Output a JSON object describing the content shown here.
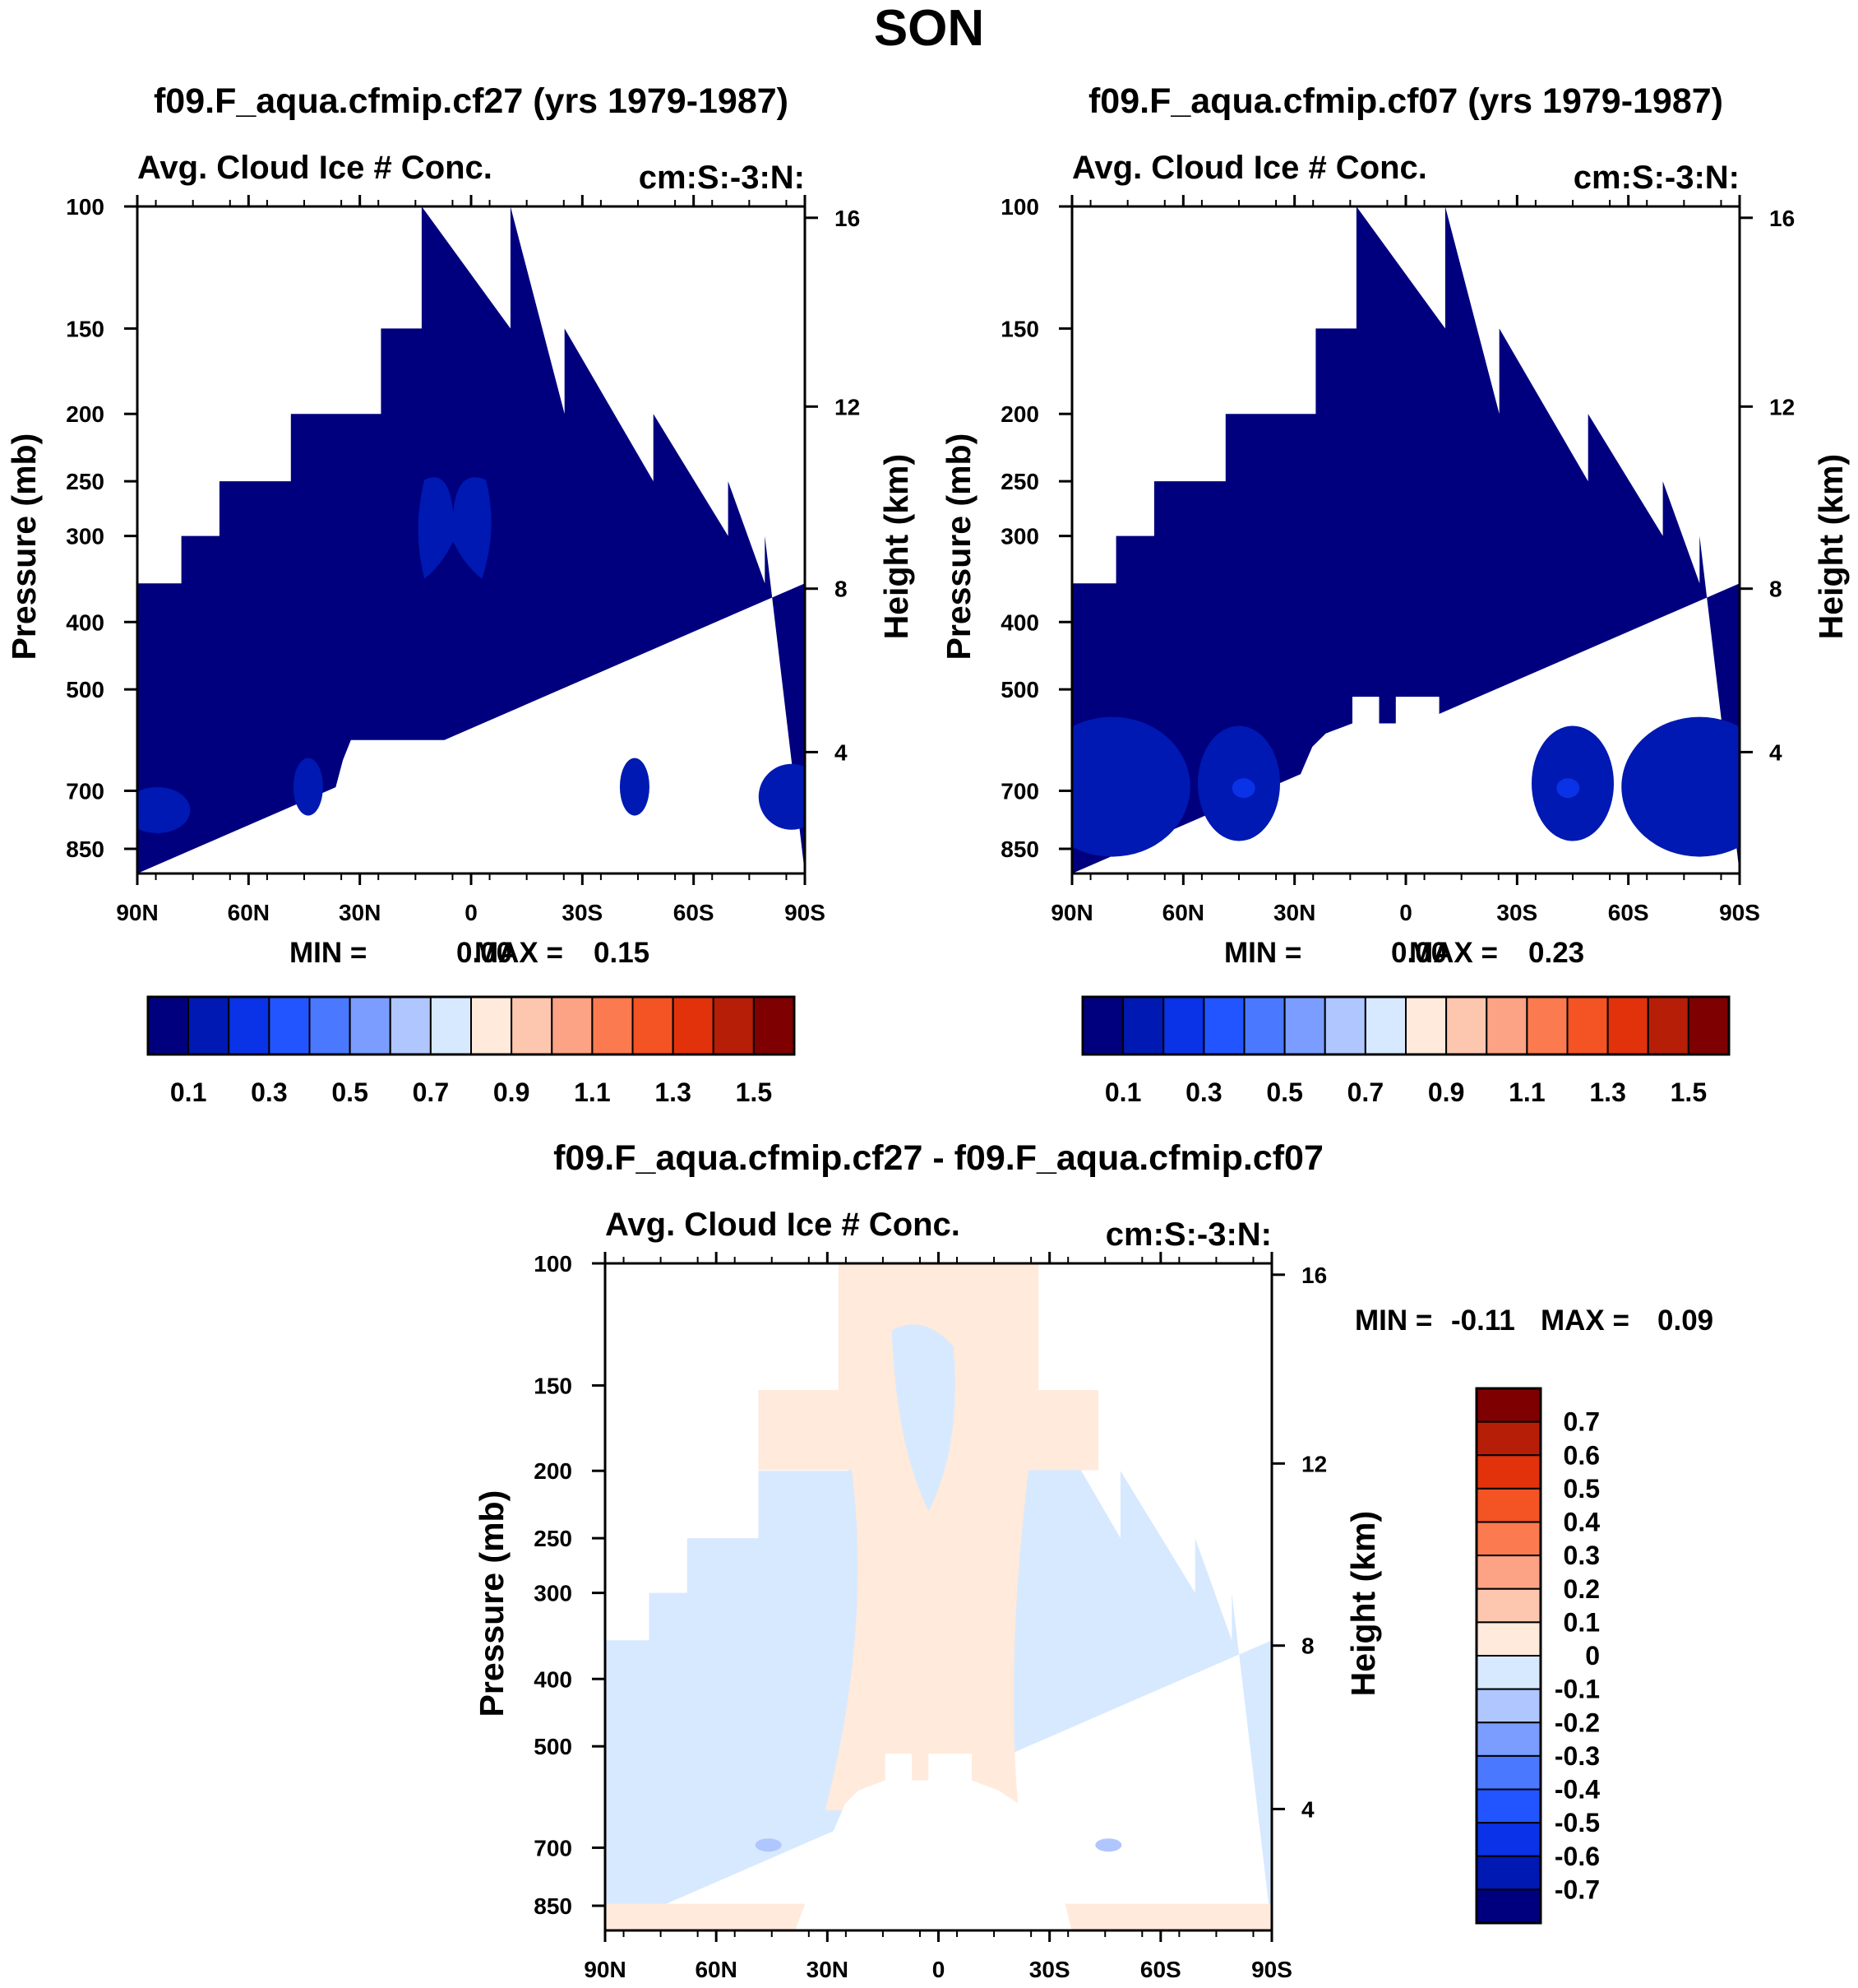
{
  "figure": {
    "title": "SON"
  },
  "colors": {
    "abs_scale": [
      "#00007f",
      "#0019b2",
      "#0a32e6",
      "#2255ff",
      "#4a78ff",
      "#7b9dff",
      "#b0c6ff",
      "#d7e9ff",
      "#ffeadb",
      "#fdc6ae",
      "#fca285",
      "#fb7a4f",
      "#f45324",
      "#e1320c",
      "#b61e07",
      "#7f0000"
    ],
    "diff_scale": [
      "#00007f",
      "#0019b2",
      "#0a32e6",
      "#2255ff",
      "#4a78ff",
      "#7b9dff",
      "#b0c6ff",
      "#d7e9ff",
      "#ffeadb",
      "#fdc6ae",
      "#fca285",
      "#fb7a4f",
      "#f45324",
      "#e1320c",
      "#b61e07",
      "#7f0000"
    ]
  },
  "chart_data": [
    {
      "type": "heatmap",
      "title": "f09.F_aqua.cfmip.cf27 (yrs 1979-1987)",
      "subtitle": "Avg. Cloud Ice # Conc.",
      "units": "cm:S:-3:N:",
      "xlabel": "",
      "ylabel": "Pressure (mb)",
      "y2label": "Height (km)",
      "xticks": [
        "90N",
        "60N",
        "30N",
        "0",
        "30S",
        "60S",
        "90S"
      ],
      "x_range": [
        90,
        -90
      ],
      "yticks": [
        "100",
        "150",
        "200",
        "250",
        "300",
        "400",
        "500",
        "700",
        "850"
      ],
      "y_range_mb": [
        100,
        1000
      ],
      "y2ticks": [
        "16",
        "12",
        "8",
        "4"
      ],
      "min_label": "MIN =",
      "min_value": "0.00",
      "max_label": "MAX =",
      "max_value": "0.15",
      "colorbar": {
        "orientation": "horizontal",
        "labels": [
          "0.1",
          "0.3",
          "0.5",
          "0.7",
          "0.9",
          "1.1",
          "1.3",
          "1.5"
        ],
        "levels": [
          0.1,
          0.2,
          0.3,
          0.4,
          0.5,
          0.6,
          0.7,
          0.8,
          0.9,
          1.0,
          1.1,
          1.2,
          1.3,
          1.4,
          1.5
        ]
      },
      "data_range": [
        0.0,
        0.15
      ]
    },
    {
      "type": "heatmap",
      "title": "f09.F_aqua.cfmip.cf07 (yrs 1979-1987)",
      "subtitle": "Avg. Cloud Ice # Conc.",
      "units": "cm:S:-3:N:",
      "xlabel": "",
      "ylabel": "Pressure (mb)",
      "y2label": "Height (km)",
      "xticks": [
        "90N",
        "60N",
        "30N",
        "0",
        "30S",
        "60S",
        "90S"
      ],
      "x_range": [
        90,
        -90
      ],
      "yticks": [
        "100",
        "150",
        "200",
        "250",
        "300",
        "400",
        "500",
        "700",
        "850"
      ],
      "y_range_mb": [
        100,
        1000
      ],
      "y2ticks": [
        "16",
        "12",
        "8",
        "4"
      ],
      "min_label": "MIN =",
      "min_value": "0.00",
      "max_label": "MAX =",
      "max_value": "0.23",
      "colorbar": {
        "orientation": "horizontal",
        "labels": [
          "0.1",
          "0.3",
          "0.5",
          "0.7",
          "0.9",
          "1.1",
          "1.3",
          "1.5"
        ],
        "levels": [
          0.1,
          0.2,
          0.3,
          0.4,
          0.5,
          0.6,
          0.7,
          0.8,
          0.9,
          1.0,
          1.1,
          1.2,
          1.3,
          1.4,
          1.5
        ]
      },
      "data_range": [
        0.0,
        0.23
      ]
    },
    {
      "type": "heatmap",
      "title": "f09.F_aqua.cfmip.cf27 - f09.F_aqua.cfmip.cf07",
      "subtitle": "Avg. Cloud Ice # Conc.",
      "units": "cm:S:-3:N:",
      "xlabel": "",
      "ylabel": "Pressure (mb)",
      "y2label": "Height (km)",
      "xticks": [
        "90N",
        "60N",
        "30N",
        "0",
        "30S",
        "60S",
        "90S"
      ],
      "x_range": [
        90,
        -90
      ],
      "yticks": [
        "100",
        "150",
        "200",
        "250",
        "300",
        "400",
        "500",
        "700",
        "850"
      ],
      "y_range_mb": [
        100,
        1000
      ],
      "y2ticks": [
        "16",
        "12",
        "8",
        "4"
      ],
      "min_label": "MIN =",
      "min_value": "-0.11",
      "max_label": "MAX =",
      "max_value": "0.09",
      "colorbar": {
        "orientation": "vertical",
        "labels": [
          "0.7",
          "0.6",
          "0.5",
          "0.4",
          "0.3",
          "0.2",
          "0.1",
          "0",
          "-0.1",
          "-0.2",
          "-0.3",
          "-0.4",
          "-0.5",
          "-0.6",
          "-0.7"
        ],
        "levels": [
          -0.7,
          -0.6,
          -0.5,
          -0.4,
          -0.3,
          -0.2,
          -0.1,
          0,
          0.1,
          0.2,
          0.3,
          0.4,
          0.5,
          0.6,
          0.7
        ]
      },
      "data_range": [
        -0.11,
        0.09
      ]
    }
  ]
}
